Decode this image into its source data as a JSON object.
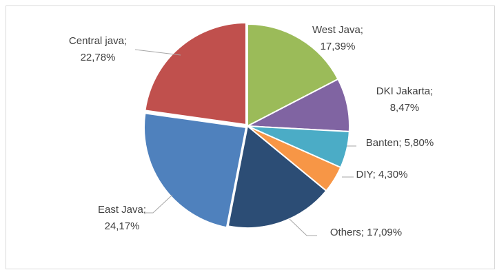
{
  "chart_data": {
    "type": "pie",
    "title": "",
    "slices": [
      {
        "label": "West Java",
        "value": 17.39,
        "value_text": "17,39%",
        "color": "#9bbb59"
      },
      {
        "label": "DKI Jakarta",
        "value": 8.47,
        "value_text": "8,47%",
        "color": "#8064a2"
      },
      {
        "label": "Banten",
        "value": 5.8,
        "value_text": "5,80%",
        "color": "#4bacc6"
      },
      {
        "label": "DIY",
        "value": 4.3,
        "value_text": "4,30%",
        "color": "#f79646"
      },
      {
        "label": "Others",
        "value": 17.09,
        "value_text": "17,09%",
        "color": "#2c4d75"
      },
      {
        "label": "East Java",
        "value": 24.17,
        "value_text": "24,17%",
        "color": "#4f81bd"
      },
      {
        "label": "Central java",
        "value": 22.78,
        "value_text": "22,78%",
        "color": "#c0504d"
      }
    ],
    "legend": "none",
    "data_labels": "outside with leader lines"
  }
}
